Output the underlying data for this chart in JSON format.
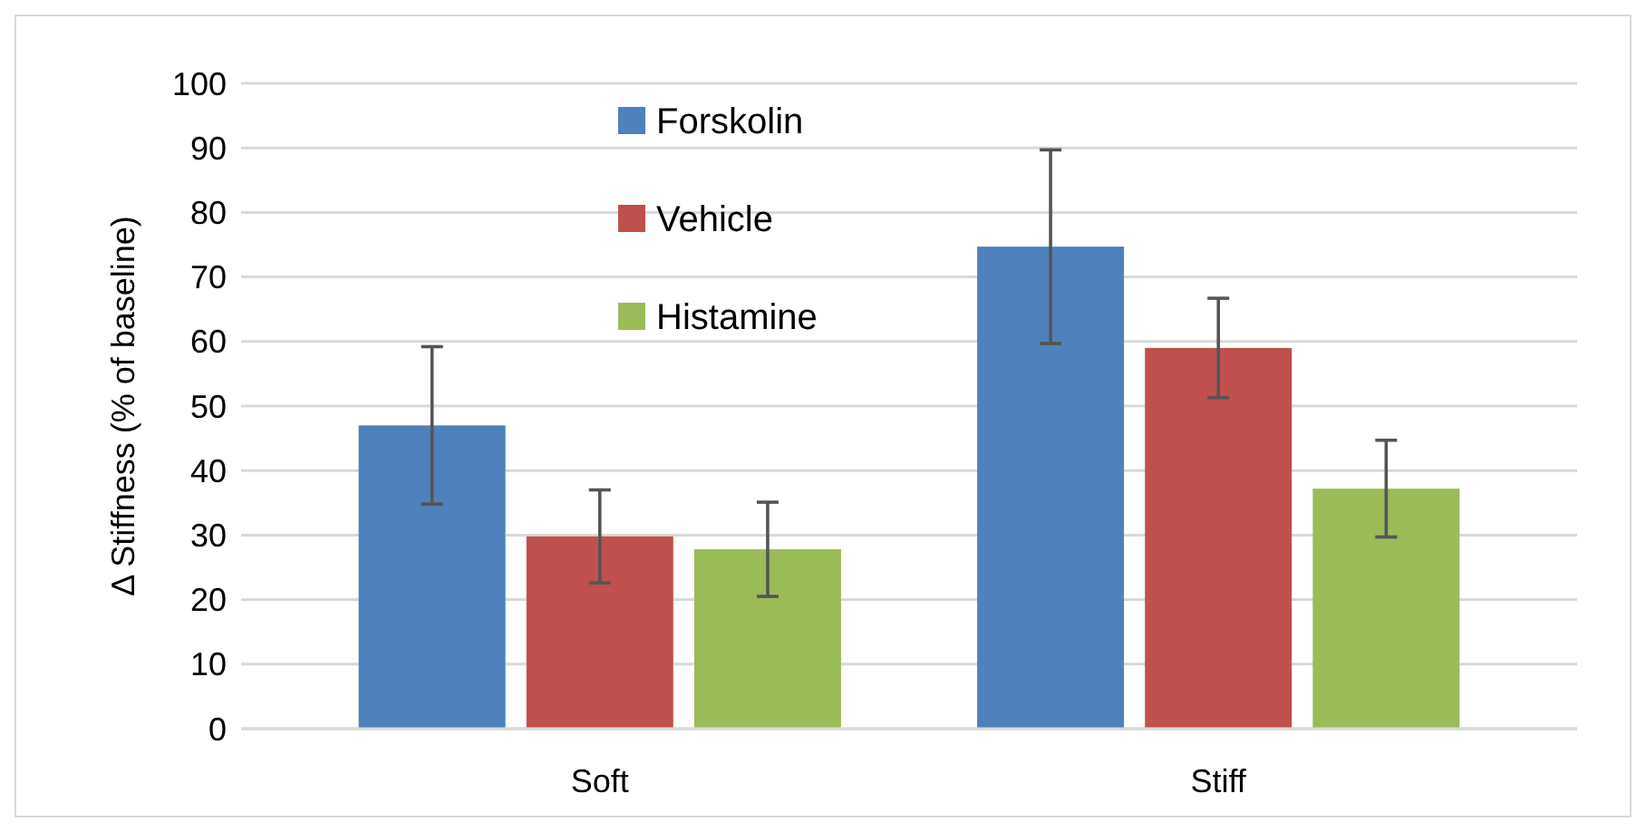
{
  "chart_data": {
    "type": "bar",
    "ylabel": "Δ Stiffness (% of baseline)",
    "categories": [
      "Soft",
      "Stiff"
    ],
    "series": [
      {
        "name": "Forskolin",
        "color": "#4f81bd",
        "values": [
          47,
          74.7
        ],
        "errors": [
          12.2,
          15
        ]
      },
      {
        "name": "Vehicle",
        "color": "#c0504d",
        "values": [
          29.8,
          59
        ],
        "errors": [
          7.2,
          7.7
        ]
      },
      {
        "name": "Histamine",
        "color": "#9bbb59",
        "values": [
          27.8,
          37.2
        ],
        "errors": [
          7.3,
          7.5
        ]
      }
    ],
    "ylim": [
      0,
      100
    ],
    "yticks": [
      0,
      10,
      20,
      30,
      40,
      50,
      60,
      70,
      80,
      90,
      100
    ],
    "grid": "y",
    "legend": "top"
  }
}
